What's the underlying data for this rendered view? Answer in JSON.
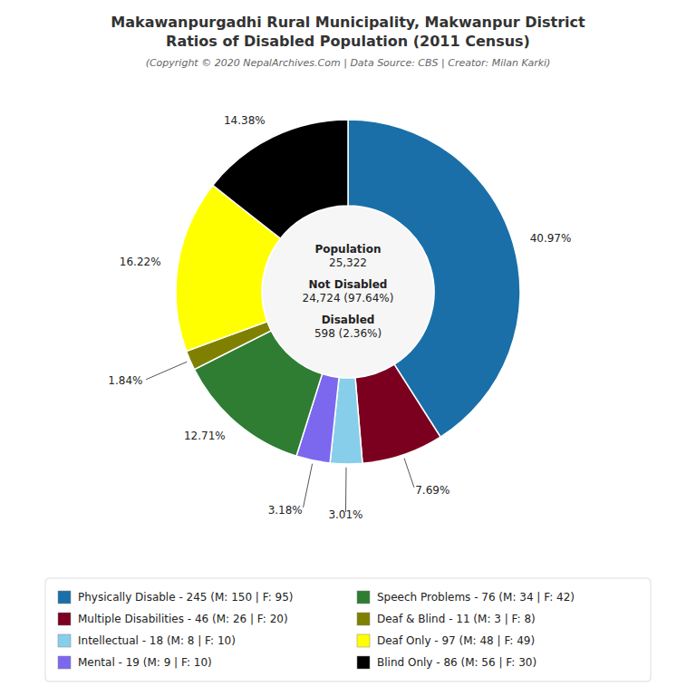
{
  "chart_data": {
    "type": "pie",
    "title": "Makawanpurgadhi Rural Municipality, Makwanpur District\nRatios of Disabled Population (2011 Census)",
    "subtitle": "(Copyright © 2020 NepalArchives.Com | Data Source: CBS | Creator: Milan Karki)",
    "categories": [
      "Physically Disable - 245 (M: 150 | F: 95)",
      "Multiple Disabilities - 46 (M: 26 | F: 20)",
      "Intellectual - 18 (M: 8 | F: 10)",
      "Mental - 19 (M: 9 | F: 10)",
      "Speech Problems - 76 (M: 34 | F: 42)",
      "Deaf & Blind - 11 (M: 3 | F: 8)",
      "Deaf Only - 97 (M: 48 | F: 49)",
      "Blind Only - 86 (M: 56 | F: 30)"
    ],
    "values": [
      40.97,
      7.69,
      3.01,
      3.18,
      12.71,
      1.84,
      16.22,
      14.38
    ],
    "value_labels": [
      "40.97%",
      "7.69%",
      "3.01%",
      "3.18%",
      "12.71%",
      "1.84%",
      "16.22%",
      "14.38%"
    ],
    "colors": [
      "#1a6fa8",
      "#7b0020",
      "#87ceeb",
      "#7b68ee",
      "#2e7d32",
      "#808000",
      "#ffff00",
      "#000000"
    ],
    "data_labels": true,
    "legend": "bottom",
    "annotations": [
      "Population\n25,322",
      "Not Disabled\n24,724 (97.64%)",
      "Disabled\n598 (2.36%)"
    ]
  }
}
